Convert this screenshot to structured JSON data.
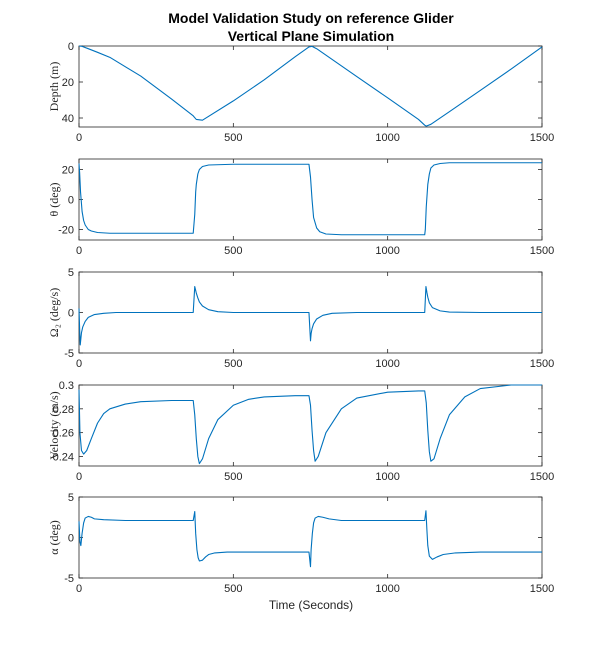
{
  "title_line1": "Model Validation Study on reference Glider",
  "title_line2": "Vertical Plane Simulation",
  "xlabel": "Time (Seconds)",
  "colors": {
    "series": "#0072bd",
    "axis": "#262626"
  },
  "chart_data": [
    {
      "type": "line",
      "ylabel": "Depth (m)",
      "xlim": [
        0,
        1500
      ],
      "ylim": [
        0,
        45
      ],
      "y_reversed": true,
      "xticks": [
        "0",
        "500",
        "1000",
        "1500"
      ],
      "yticks": [
        {
          "v": 0,
          "label": "0"
        },
        {
          "v": 20,
          "label": "20"
        },
        {
          "v": 40,
          "label": "40"
        }
      ],
      "series": [
        {
          "x": [
            0,
            10,
            30,
            60,
            100,
            200,
            300,
            370,
            380,
            400,
            500,
            600,
            700,
            745,
            755,
            770,
            900,
            1000,
            1100,
            1120,
            1125,
            1140,
            1200,
            1300,
            1400,
            1500
          ],
          "y": [
            0,
            0.2,
            1.5,
            3.5,
            6.3,
            16.7,
            29.5,
            38.8,
            40.8,
            41.2,
            30.5,
            18.8,
            6.0,
            0.5,
            0.2,
            1.5,
            17.0,
            28.8,
            40.8,
            44.0,
            44.5,
            43.5,
            36.5,
            24.7,
            12.8,
            0.5
          ]
        }
      ]
    },
    {
      "type": "line",
      "ylabel": "θ (deg)",
      "xlim": [
        0,
        1500
      ],
      "ylim": [
        -27,
        27
      ],
      "xticks": [
        "0",
        "500",
        "1000",
        "1500"
      ],
      "yticks": [
        {
          "v": -20,
          "label": "-20"
        },
        {
          "v": 0,
          "label": "0"
        },
        {
          "v": 20,
          "label": "20"
        }
      ],
      "series": [
        {
          "x": [
            0,
            2,
            5,
            10,
            15,
            20,
            30,
            40,
            60,
            100,
            200,
            300,
            370,
            375,
            378,
            380,
            385,
            390,
            400,
            420,
            500,
            600,
            700,
            745,
            750,
            755,
            760,
            770,
            780,
            800,
            850,
            1000,
            1100,
            1120,
            1122,
            1125,
            1130,
            1135,
            1140,
            1150,
            1170,
            1200,
            1300,
            1400,
            1500
          ],
          "y": [
            24,
            18,
            5,
            -8,
            -14,
            -17,
            -20,
            -21,
            -22,
            -22.5,
            -22.5,
            -22.5,
            -22.5,
            -10,
            5,
            10,
            17,
            20,
            22,
            23,
            23.5,
            23.5,
            23.5,
            23.5,
            15,
            0,
            -12,
            -19,
            -21.5,
            -23,
            -23.5,
            -23.5,
            -23.5,
            -23.5,
            -20,
            -5,
            10,
            17,
            21,
            23,
            24,
            24.5,
            24.5,
            24.5,
            24.5
          ]
        }
      ]
    },
    {
      "type": "line",
      "ylabel": "Ω₂ (deg/s)",
      "xlim": [
        0,
        1500
      ],
      "ylim": [
        -5,
        5
      ],
      "xticks": [
        "0",
        "500",
        "1000",
        "1500"
      ],
      "yticks": [
        {
          "v": -5,
          "label": "-5"
        },
        {
          "v": 0,
          "label": "0"
        },
        {
          "v": 5,
          "label": "5"
        }
      ],
      "series": [
        {
          "x": [
            0,
            2,
            4,
            8,
            12,
            20,
            30,
            50,
            80,
            120,
            200,
            300,
            370,
            375,
            380,
            385,
            390,
            400,
            420,
            450,
            500,
            600,
            745,
            750,
            752,
            755,
            760,
            770,
            790,
            820,
            900,
            1000,
            1120,
            1124,
            1127,
            1130,
            1135,
            1145,
            1170,
            1200,
            1300,
            1500
          ],
          "y": [
            0.5,
            -2,
            -4,
            -2.5,
            -1.8,
            -1.1,
            -0.6,
            -0.25,
            -0.1,
            0,
            0,
            0,
            0,
            3.2,
            2.4,
            1.8,
            1.3,
            0.8,
            0.35,
            0.1,
            0,
            0,
            0,
            -3.5,
            -2.6,
            -2,
            -1.4,
            -0.8,
            -0.35,
            -0.1,
            0,
            0,
            0,
            3.2,
            2.5,
            1.9,
            1.2,
            0.6,
            0.2,
            0.05,
            0,
            0
          ]
        }
      ]
    },
    {
      "type": "line",
      "ylabel": "Velocity (m/s)",
      "xlim": [
        0,
        1500
      ],
      "ylim": [
        0.232,
        0.3
      ],
      "xticks": [
        "0",
        "500",
        "1000",
        "1500"
      ],
      "yticks": [
        {
          "v": 0.24,
          "label": "0.24"
        },
        {
          "v": 0.26,
          "label": "0.26"
        },
        {
          "v": 0.28,
          "label": "0.28"
        },
        {
          "v": 0.3,
          "label": "0.3"
        }
      ],
      "series": [
        {
          "x": [
            0,
            3,
            8,
            15,
            25,
            40,
            60,
            80,
            100,
            150,
            200,
            300,
            370,
            375,
            380,
            385,
            390,
            400,
            420,
            450,
            500,
            550,
            600,
            700,
            745,
            750,
            755,
            760,
            765,
            775,
            800,
            850,
            900,
            1000,
            1100,
            1120,
            1125,
            1130,
            1135,
            1140,
            1150,
            1170,
            1200,
            1250,
            1300,
            1400,
            1500
          ],
          "y": [
            0.296,
            0.26,
            0.245,
            0.242,
            0.245,
            0.255,
            0.268,
            0.276,
            0.28,
            0.284,
            0.286,
            0.287,
            0.287,
            0.275,
            0.255,
            0.24,
            0.234,
            0.238,
            0.255,
            0.271,
            0.283,
            0.288,
            0.29,
            0.291,
            0.291,
            0.283,
            0.262,
            0.245,
            0.236,
            0.24,
            0.26,
            0.28,
            0.289,
            0.294,
            0.295,
            0.295,
            0.285,
            0.262,
            0.244,
            0.236,
            0.238,
            0.255,
            0.275,
            0.29,
            0.297,
            0.3,
            0.3
          ]
        }
      ]
    },
    {
      "type": "line",
      "ylabel": "α (deg)",
      "xlim": [
        0,
        1500
      ],
      "ylim": [
        -5,
        5
      ],
      "xticks": [
        "0",
        "500",
        "1000",
        "1500"
      ],
      "yticks": [
        {
          "v": -5,
          "label": "-5"
        },
        {
          "v": 0,
          "label": "0"
        },
        {
          "v": 5,
          "label": "5"
        }
      ],
      "series": [
        {
          "x": [
            0,
            3,
            6,
            10,
            15,
            20,
            30,
            40,
            50,
            80,
            150,
            300,
            370,
            375,
            378,
            382,
            386,
            390,
            400,
            410,
            420,
            440,
            480,
            600,
            745,
            750,
            752,
            756,
            760,
            765,
            775,
            790,
            810,
            850,
            1000,
            1120,
            1124,
            1127,
            1130,
            1135,
            1145,
            1160,
            1180,
            1220,
            1300,
            1500
          ],
          "y": [
            2,
            -0.5,
            -1,
            0.5,
            1.8,
            2.4,
            2.6,
            2.5,
            2.3,
            2.2,
            2.1,
            2.1,
            2.1,
            3.2,
            0.5,
            -1.5,
            -2.5,
            -2.9,
            -2.8,
            -2.4,
            -2.1,
            -1.9,
            -1.8,
            -1.8,
            -1.8,
            -3.6,
            -1.5,
            0.5,
            1.8,
            2.4,
            2.6,
            2.5,
            2.3,
            2.1,
            2.1,
            2.1,
            3.3,
            1,
            -1,
            -2.3,
            -2.7,
            -2.4,
            -2.1,
            -1.9,
            -1.8,
            -1.8
          ]
        }
      ]
    }
  ]
}
